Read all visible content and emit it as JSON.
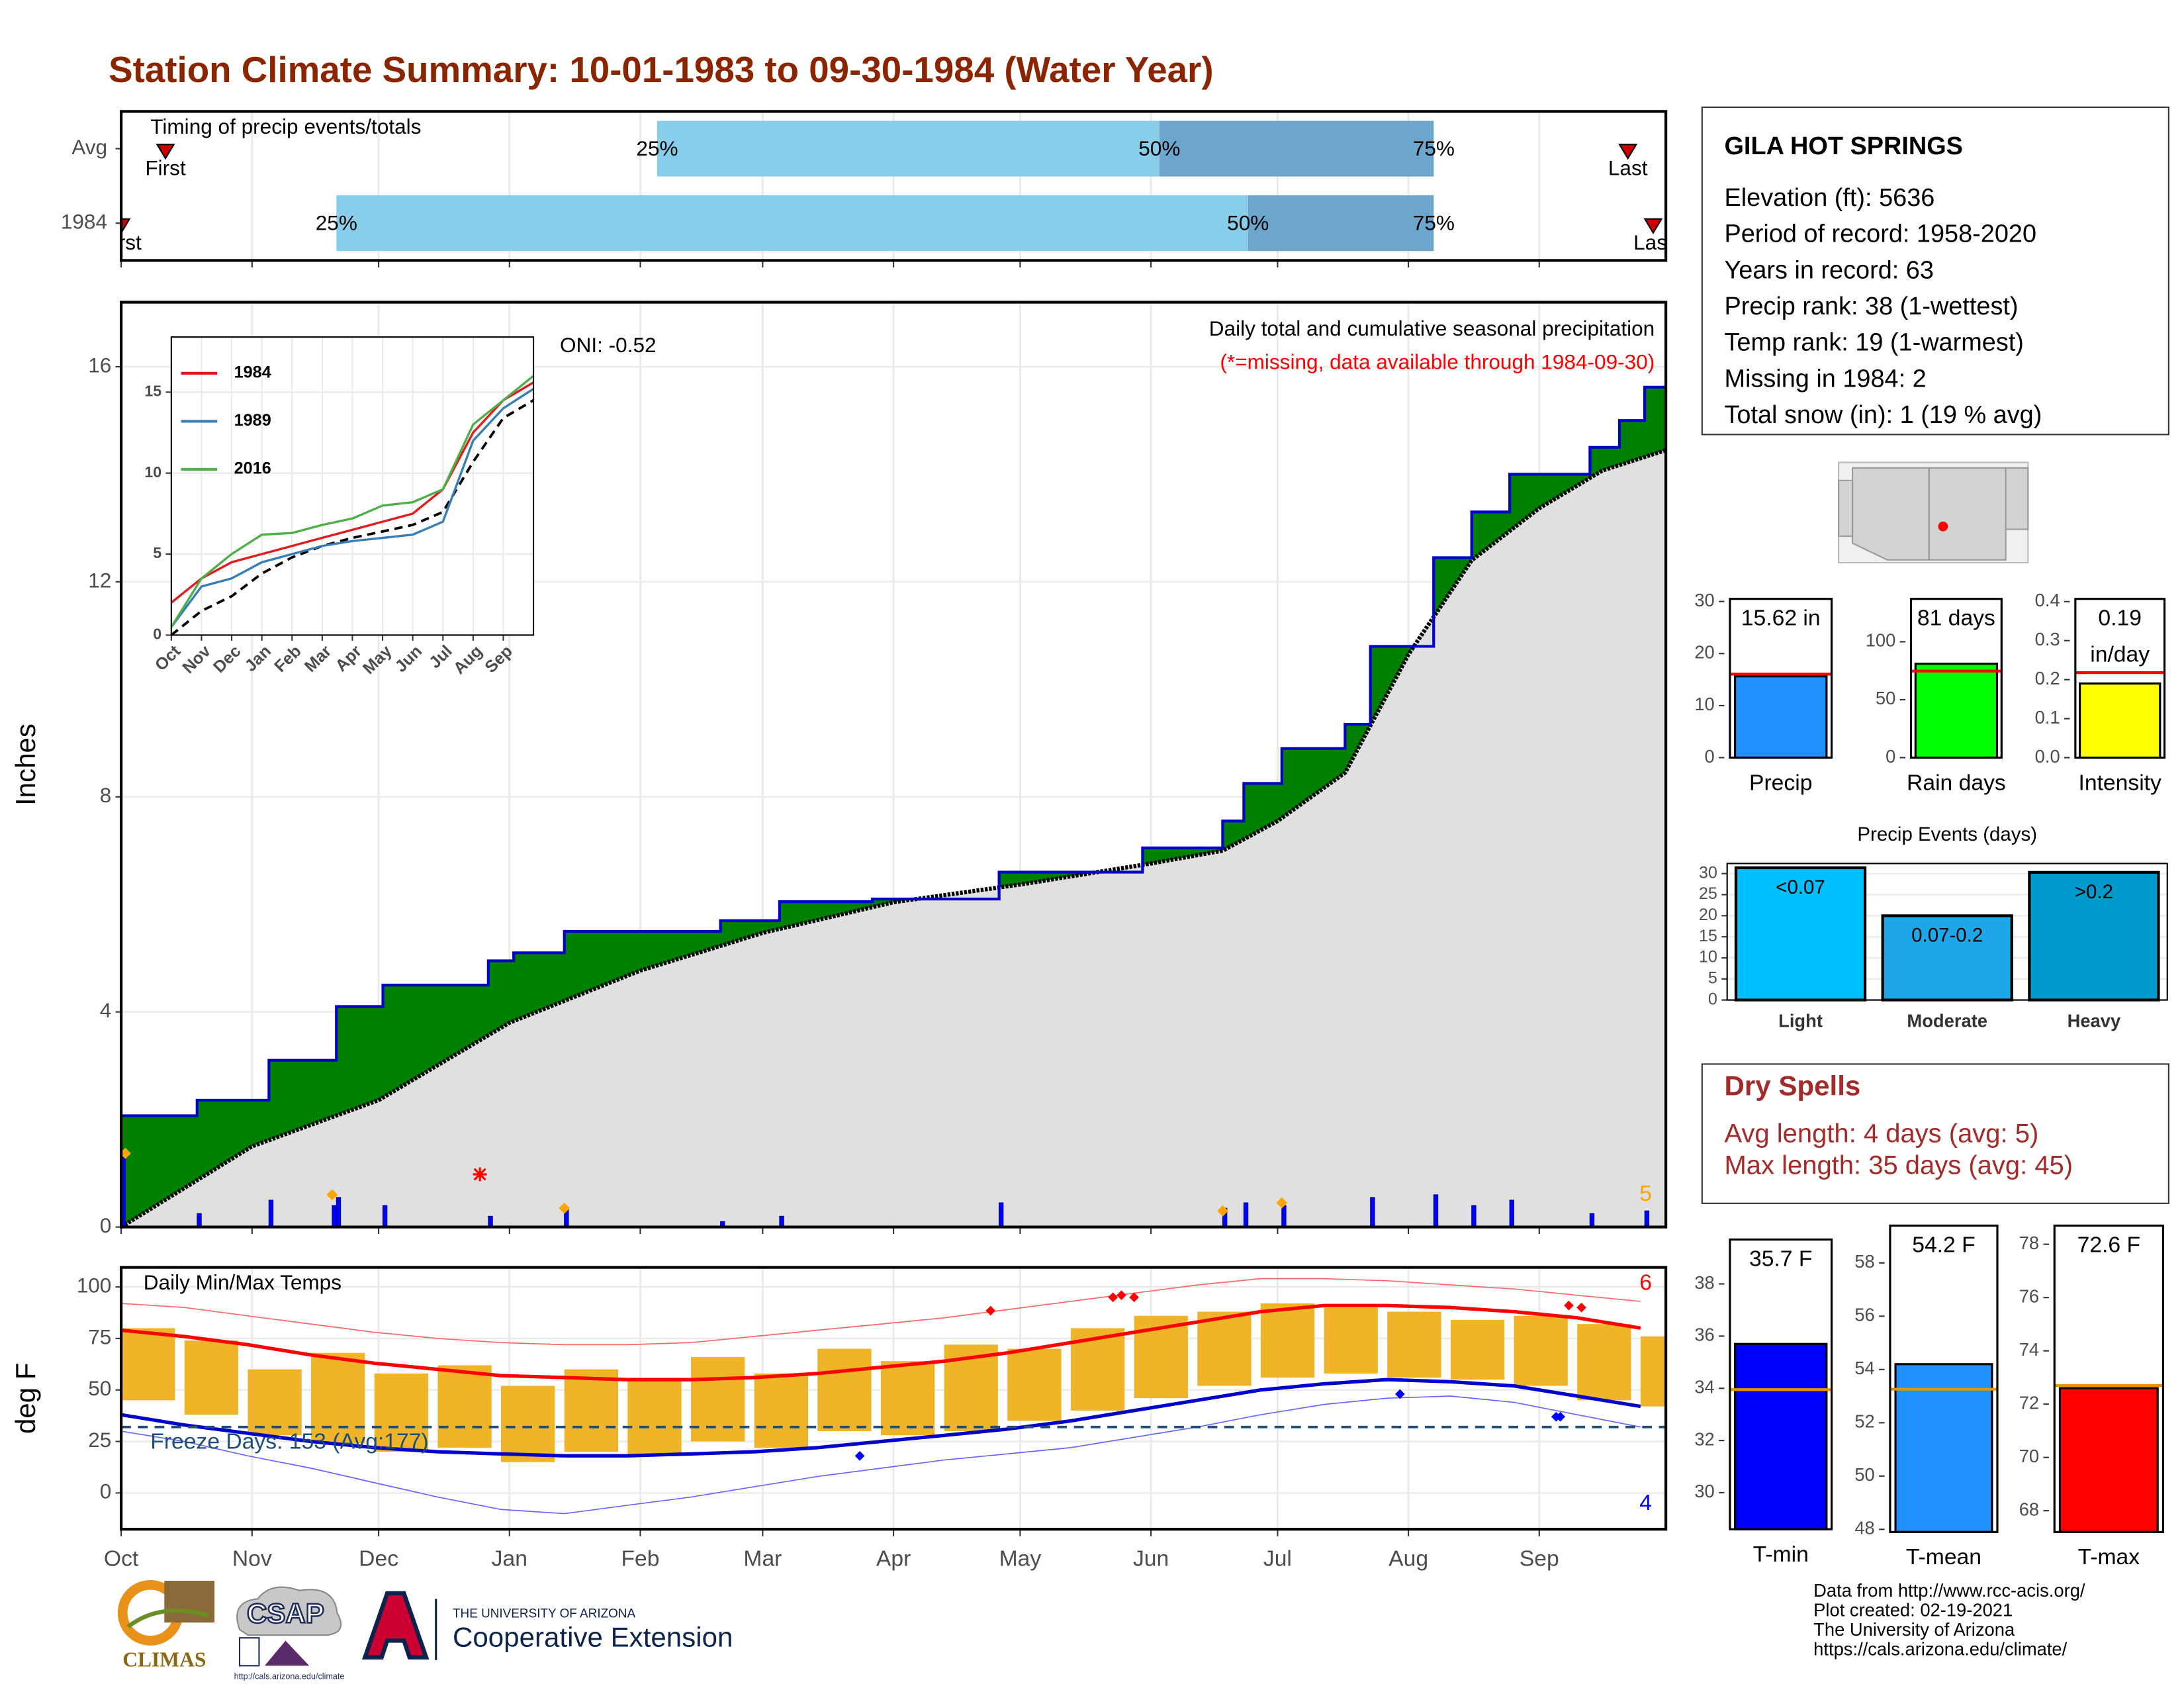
{
  "title": "Station Climate Summary: 10-01-1983 to 09-30-1984 (Water Year)",
  "chart_data": [
    {
      "type": "timing",
      "title": "Timing of precip events/totals",
      "categories": [
        "Avg",
        "1984"
      ],
      "xlim": [
        0,
        366
      ],
      "first": [
        10.5,
        0
      ],
      "q25": [
        127,
        51
      ],
      "q50": [
        246,
        267
      ],
      "q75": [
        311,
        311
      ],
      "last": [
        357,
        363
      ],
      "labels": {
        "first": "First",
        "q25": "25%",
        "q50": "50%",
        "q75": "75%",
        "last": "Last"
      },
      "colors": {
        "light": "#87ceeb",
        "dark": "#6ca6cd",
        "marker": "#cc0000"
      }
    },
    {
      "type": "area",
      "title": "Daily total and cumulative seasonal precipitation",
      "subtitle": "(*=missing, data available through 1984-09-30)",
      "annotation": "ONI: -0.52",
      "snow_count": 5,
      "ylabel": "Inches",
      "xlim": [
        0,
        366
      ],
      "ylim": [
        0,
        17.2
      ],
      "yticks": [
        0,
        4,
        8,
        12,
        16
      ],
      "grid": true,
      "cumulative": {
        "color": "#008000",
        "line": "#0000cc",
        "x": [
          0,
          18,
          35,
          51,
          62,
          87,
          93,
          105,
          142,
          156,
          178,
          208,
          242,
          261,
          266,
          275,
          290,
          296,
          311,
          320,
          329,
          348,
          355,
          361
        ],
        "values": [
          2.07,
          2.36,
          3.1,
          4.1,
          4.5,
          4.95,
          5.1,
          5.5,
          5.7,
          6.05,
          6.1,
          6.6,
          7.05,
          7.55,
          8.25,
          8.9,
          9.35,
          10.8,
          12.45,
          13.3,
          14.0,
          14.5,
          15.0,
          15.62
        ]
      },
      "average": {
        "color": "#e0e0e0",
        "line": "#000000",
        "x": [
          0,
          31,
          61,
          92,
          123,
          152,
          183,
          213,
          244,
          261,
          274,
          290,
          305,
          320,
          336,
          351,
          366
        ],
        "values": [
          0,
          1.5,
          2.36,
          3.8,
          4.77,
          5.47,
          6.04,
          6.37,
          6.76,
          7.0,
          7.55,
          8.45,
          10.65,
          12.4,
          13.37,
          14.07,
          14.45
        ]
      },
      "daily": {
        "color": "#0000ff",
        "x": [
          0,
          18,
          35,
          50,
          51,
          62,
          87,
          105,
          142,
          156,
          208,
          261,
          266,
          275,
          296,
          311,
          320,
          329,
          348,
          361
        ],
        "values": [
          1.3,
          0.25,
          0.5,
          0.4,
          0.55,
          0.4,
          0.2,
          0.35,
          0.1,
          0.2,
          0.45,
          0.35,
          0.45,
          0.4,
          0.55,
          0.6,
          0.4,
          0.5,
          0.25,
          0.3
        ]
      },
      "snow": {
        "color": "#ffa500",
        "x": [
          1,
          50,
          105,
          261,
          275
        ],
        "values": [
          1.37,
          0.6,
          0.35,
          0.3,
          0.45
        ]
      },
      "missing": {
        "color": "#ff0000",
        "x": [
          85
        ],
        "values": [
          0.98
        ]
      }
    },
    {
      "type": "range",
      "title": "Daily Min/Max Temps",
      "annotation": "Freeze Days: 153 (Avg:177)",
      "ylabel": "deg F",
      "xlim": [
        0,
        366
      ],
      "ylim": [
        -17.6,
        109.5
      ],
      "yticks": [
        0,
        25,
        50,
        75,
        100
      ],
      "grid": true,
      "xticks": [
        {
          "value": 0,
          "label": "Oct"
        },
        {
          "value": 31,
          "label": "Nov"
        },
        {
          "value": 61,
          "label": "Dec"
        },
        {
          "value": 92,
          "label": "Jan"
        },
        {
          "value": 123,
          "label": "Feb"
        },
        {
          "value": 152,
          "label": "Mar"
        },
        {
          "value": 183,
          "label": "Apr"
        },
        {
          "value": 213,
          "label": "May"
        },
        {
          "value": 244,
          "label": "Jun"
        },
        {
          "value": 274,
          "label": "Jul"
        },
        {
          "value": 305,
          "label": "Aug"
        },
        {
          "value": 336,
          "label": "Sep"
        }
      ],
      "x": [
        0,
        15,
        30,
        45,
        60,
        75,
        90,
        105,
        120,
        135,
        150,
        165,
        180,
        195,
        210,
        225,
        240,
        255,
        270,
        285,
        300,
        315,
        330,
        345,
        360
      ],
      "daily_max": [
        80,
        74,
        60,
        68,
        58,
        62,
        52,
        60,
        55,
        66,
        58,
        70,
        64,
        72,
        70,
        80,
        86,
        88,
        92,
        90,
        88,
        84,
        86,
        82,
        76
      ],
      "daily_min": [
        45,
        38,
        28,
        24,
        20,
        22,
        15,
        20,
        18,
        25,
        22,
        30,
        28,
        30,
        35,
        40,
        46,
        52,
        56,
        58,
        56,
        55,
        52,
        45,
        42
      ],
      "avg_max": [
        79,
        76,
        72,
        67,
        63,
        60,
        57,
        56,
        55,
        55,
        56,
        58,
        61,
        64,
        68,
        73,
        78,
        83,
        88,
        91,
        91,
        90,
        88,
        85,
        80
      ],
      "avg_min": [
        38,
        33,
        29,
        25,
        22,
        20,
        19,
        18,
        18,
        19,
        20,
        22,
        25,
        28,
        31,
        35,
        40,
        45,
        50,
        53,
        55,
        54,
        52,
        47,
        42
      ],
      "record_max": [
        92,
        90,
        86,
        82,
        78,
        75,
        73,
        72,
        72,
        73,
        76,
        79,
        82,
        85,
        89,
        93,
        97,
        101,
        104,
        104,
        103,
        101,
        99,
        96,
        93
      ],
      "record_min": [
        30,
        25,
        18,
        12,
        5,
        -2,
        -8,
        -10,
        -6,
        -2,
        3,
        8,
        12,
        16,
        19,
        22,
        27,
        32,
        38,
        43,
        46,
        47,
        44,
        38,
        32
      ],
      "freeze": 32,
      "record_highs": {
        "count": 6,
        "color": "#ff0000",
        "x": [
          206,
          235,
          237,
          240,
          343,
          346
        ],
        "values": [
          88.5,
          95,
          96,
          95,
          91,
          90
        ]
      },
      "record_lows": {
        "count": 4,
        "color": "#0000ff",
        "x": [
          175,
          303,
          340,
          341
        ],
        "values": [
          18,
          48,
          37,
          37
        ]
      },
      "colors": {
        "bars": "#f0b429",
        "avg_max": "#ff0000",
        "avg_min": "#0000cd",
        "record_max": "#ff6666",
        "record_min": "#6666ff",
        "freeze": "#1f4e79"
      }
    },
    {
      "type": "line",
      "xlim": [
        0,
        12
      ],
      "ylim": [
        0,
        18.4
      ],
      "yticks": [
        0,
        5,
        10,
        15
      ],
      "xticks": [
        {
          "value": 0,
          "label": "Oct"
        },
        {
          "value": 1,
          "label": "Nov"
        },
        {
          "value": 2,
          "label": "Dec"
        },
        {
          "value": 3,
          "label": "Jan"
        },
        {
          "value": 4,
          "label": "Feb"
        },
        {
          "value": 5,
          "label": "Mar"
        },
        {
          "value": 6,
          "label": "Apr"
        },
        {
          "value": 7,
          "label": "May"
        },
        {
          "value": 8,
          "label": "Jun"
        },
        {
          "value": 9,
          "label": "Jul"
        },
        {
          "value": 10,
          "label": "Aug"
        },
        {
          "value": 11,
          "label": "Sep"
        }
      ],
      "x": [
        0,
        1,
        2,
        3,
        4,
        5,
        6,
        7,
        8,
        9,
        10,
        11,
        12
      ],
      "series": [
        {
          "name": "1984",
          "color": "#e41a1c",
          "values": [
            2,
            3.5,
            4.5,
            5,
            5.5,
            6,
            6.5,
            7,
            7.5,
            9,
            12.5,
            14.5,
            15.6
          ]
        },
        {
          "name": "1989",
          "color": "#377eb8",
          "values": [
            0.5,
            3,
            3.5,
            4.5,
            5,
            5.5,
            5.8,
            6,
            6.2,
            7,
            12,
            14,
            15.2
          ]
        },
        {
          "name": "2016",
          "color": "#4daf4a",
          "values": [
            0.5,
            3.5,
            5,
            6.2,
            6.3,
            6.8,
            7.2,
            8,
            8.2,
            9,
            13,
            14.5,
            16
          ]
        }
      ],
      "average": {
        "color": "#000000",
        "values": [
          0,
          1.5,
          2.4,
          3.8,
          4.8,
          5.5,
          6,
          6.4,
          6.8,
          7.6,
          10.7,
          13.4,
          14.5
        ]
      }
    },
    {
      "type": "bar",
      "categories": [
        "Precip"
      ],
      "values": [
        15.62
      ],
      "value_labels": [
        "15.62 in"
      ],
      "average": 16.05,
      "average_color": "#ff0000",
      "color": "#1e90ff",
      "ylim": [
        0,
        30.5
      ],
      "yticks": [
        0,
        10,
        20,
        30
      ]
    },
    {
      "type": "bar",
      "categories": [
        "Rain days"
      ],
      "values": [
        81
      ],
      "value_labels": [
        "81 days"
      ],
      "average": 74.7,
      "average_color": "#ff0000",
      "color": "#00ff00",
      "ylim": [
        0,
        137
      ],
      "yticks": [
        0,
        50,
        100
      ]
    },
    {
      "type": "bar",
      "categories": [
        "Intensity"
      ],
      "values": [
        0.19
      ],
      "value_labels": [
        "0.19 in/day"
      ],
      "average": 0.218,
      "average_color": "#ff0000",
      "color": "#ffff00",
      "ylim": [
        0,
        0.407
      ],
      "yticks": [
        {
          "value": 0,
          "label": "0.0"
        },
        0.1,
        0.2,
        0.3,
        0.4
      ]
    },
    {
      "type": "bar",
      "title": "Precip Events (days)",
      "categories": [
        "Light",
        "Moderate",
        "Heavy"
      ],
      "values": [
        31.4,
        20,
        30.3
      ],
      "bar_labels": [
        "<0.07",
        "0.07-0.2",
        ">0.2"
      ],
      "colors": [
        "#00bfff",
        "#1ea7e8",
        "#0099cc"
      ],
      "ylim": [
        0,
        32.4
      ],
      "yticks": [
        0,
        5,
        10,
        15,
        20,
        25,
        30
      ],
      "grid": true
    },
    {
      "type": "bar",
      "categories": [
        "T-min"
      ],
      "values": [
        35.7
      ],
      "value_labels": [
        "35.7 F"
      ],
      "average": 33.95,
      "average_color": "#e69500",
      "color": "#0000ff",
      "ylim": [
        28.6,
        39.7
      ],
      "yticks": [
        30,
        32,
        34,
        36,
        38
      ]
    },
    {
      "type": "bar",
      "categories": [
        "T-mean"
      ],
      "values": [
        54.2
      ],
      "value_labels": [
        "54.2 F"
      ],
      "average": 53.26,
      "average_color": "#e69500",
      "color": "#1e90ff",
      "ylim": [
        47.9,
        59.4
      ],
      "yticks": [
        48,
        50,
        52,
        54,
        56,
        58
      ]
    },
    {
      "type": "bar",
      "categories": [
        "T-max"
      ],
      "values": [
        72.6
      ],
      "value_labels": [
        "72.6 F"
      ],
      "average": 72.7,
      "average_color": "#e69500",
      "color": "#ff0000",
      "ylim": [
        67.2,
        78.7
      ],
      "yticks": [
        68,
        70,
        72,
        74,
        76,
        78
      ]
    }
  ],
  "station": {
    "name": "GILA HOT SPRINGS",
    "lines": [
      "Elevation (ft): 5636",
      "Period of record: 1958-2020",
      "Years in record: 63",
      "Precip rank: 38 (1-wettest)",
      "Temp rank: 19 (1-warmest)",
      "Missing in 1984: 2",
      "Total snow (in): 1 (19 % avg)"
    ]
  },
  "dry_spells": {
    "title": "Dry Spells",
    "lines": [
      "Avg length: 4 days (avg: 5)",
      "Max length: 35 days (avg: 45)"
    ]
  },
  "footer": [
    "Data from http://www.rcc-acis.org/",
    "Plot created: 02-19-2021",
    "The University of Arizona",
    "https://cals.arizona.edu/climate/"
  ],
  "logos": {
    "climas": "CLIMAS",
    "csap": "CSAP",
    "csap_url": "http://cals.arizona.edu/climate",
    "university": "THE UNIVERSITY OF ARIZONA",
    "extension": "Cooperative Extension"
  }
}
